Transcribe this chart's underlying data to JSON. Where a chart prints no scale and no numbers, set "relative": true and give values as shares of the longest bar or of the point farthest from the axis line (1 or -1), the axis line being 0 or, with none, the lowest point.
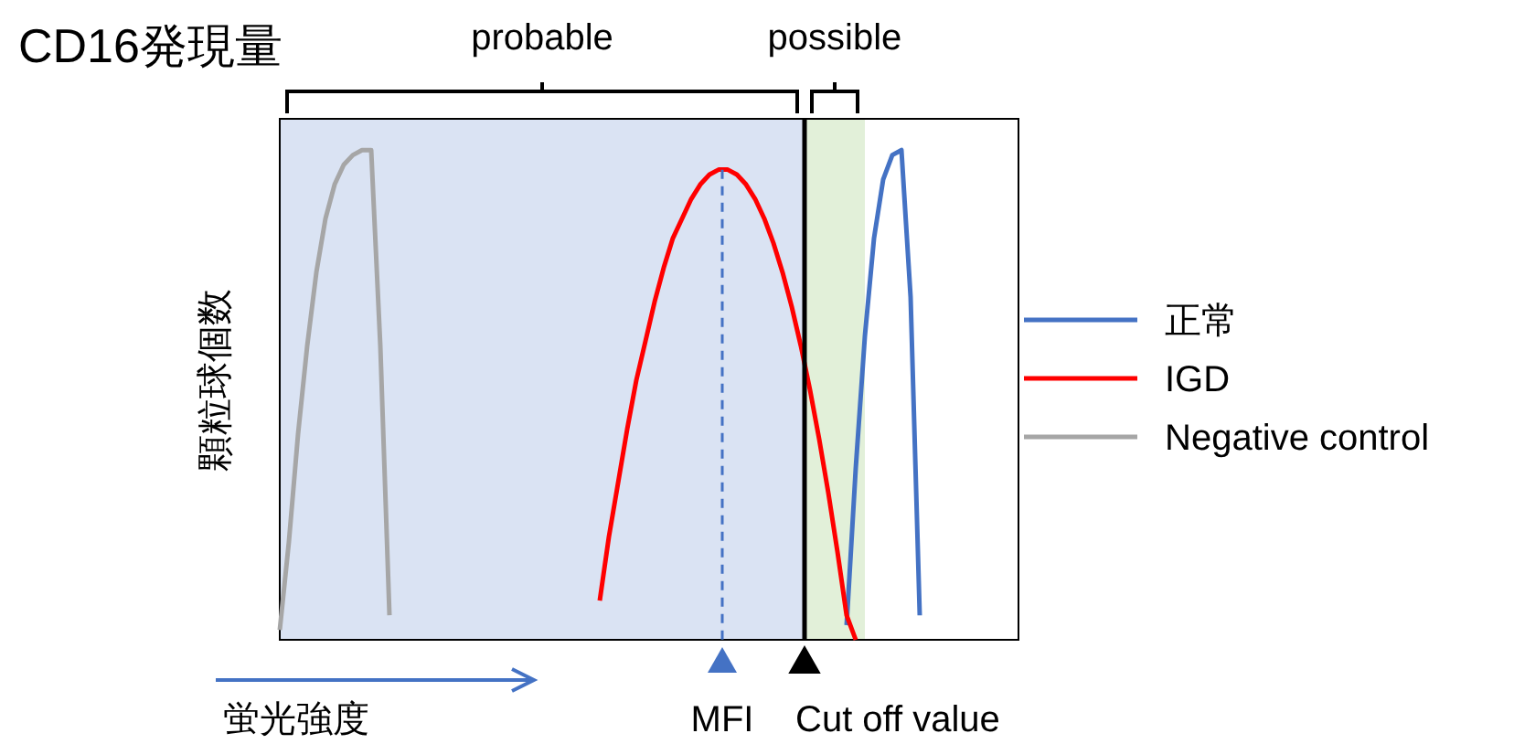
{
  "chart_data": {
    "type": "line",
    "relative": true,
    "title": "CD16発現量",
    "xlabel": "蛍光強度",
    "ylabel": "顆粒球個数",
    "legend": "right",
    "annotations": [
      "probable",
      "possible",
      "MFI",
      "Cut off value"
    ],
    "categories": [
      null,
      null,
      null,
      null,
      null,
      null,
      null,
      null,
      null,
      null,
      null,
      null,
      null,
      null,
      null,
      null,
      null,
      null,
      null,
      null,
      null,
      null,
      null,
      null,
      null,
      null,
      null,
      null,
      null,
      null,
      null,
      null,
      null,
      null,
      null,
      null,
      null,
      null,
      null,
      null,
      null,
      null,
      null,
      null,
      null,
      null,
      null,
      null,
      null,
      null,
      null,
      null,
      null,
      null,
      null,
      null,
      null,
      null,
      null,
      null,
      null,
      null,
      null,
      null,
      null,
      null,
      null,
      null,
      null,
      null,
      null,
      null,
      null,
      null,
      null,
      null,
      null,
      null,
      null,
      null,
      null
    ],
    "series": [
      {
        "name": "正常",
        "color": "#4472c4",
        "values": [
          null,
          null,
          null,
          null,
          null,
          null,
          null,
          null,
          null,
          null,
          null,
          null,
          null,
          null,
          null,
          null,
          null,
          null,
          null,
          null,
          null,
          null,
          null,
          null,
          null,
          null,
          null,
          null,
          null,
          null,
          null,
          null,
          null,
          null,
          null,
          null,
          null,
          null,
          null,
          null,
          null,
          null,
          null,
          null,
          null,
          null,
          null,
          null,
          null,
          null,
          null,
          null,
          null,
          null,
          null,
          null,
          null,
          null,
          null,
          null,
          null,
          null,
          0.03,
          0.35,
          0.62,
          0.82,
          0.94,
          0.99,
          1.0,
          0.7,
          0.05,
          null,
          null,
          null,
          null,
          null,
          null,
          null,
          null,
          null,
          null
        ]
      },
      {
        "name": "IGD",
        "color": "#ff0000",
        "values": [
          null,
          null,
          null,
          null,
          null,
          null,
          null,
          null,
          null,
          null,
          null,
          null,
          null,
          null,
          null,
          null,
          null,
          null,
          null,
          null,
          null,
          null,
          null,
          null,
          null,
          null,
          null,
          null,
          null,
          null,
          null,
          null,
          null,
          null,
          null,
          0.08,
          0.21,
          0.32,
          0.43,
          0.53,
          0.61,
          0.69,
          0.76,
          0.82,
          0.86,
          0.9,
          0.93,
          0.95,
          0.96,
          0.96,
          0.95,
          0.93,
          0.9,
          0.86,
          0.81,
          0.75,
          0.68,
          0.6,
          0.51,
          0.41,
          0.3,
          0.18,
          0.05,
          0.0,
          null,
          null,
          null,
          null,
          null,
          null,
          null,
          null,
          null,
          null,
          null,
          null,
          null,
          null,
          null,
          null,
          null
        ]
      },
      {
        "name": "Negative control",
        "color": "#a6a6a6",
        "values": [
          0.02,
          0.2,
          0.42,
          0.6,
          0.75,
          0.86,
          0.93,
          0.97,
          0.99,
          1.0,
          1.0,
          0.6,
          0.05,
          null,
          null,
          null,
          null,
          null,
          null,
          null,
          null,
          null,
          null,
          null,
          null,
          null,
          null,
          null,
          null,
          null,
          null,
          null,
          null,
          null,
          null,
          null,
          null,
          null,
          null,
          null,
          null,
          null,
          null,
          null,
          null,
          null,
          null,
          null,
          null,
          null,
          null,
          null,
          null,
          null,
          null,
          null,
          null,
          null,
          null,
          null,
          null,
          null,
          null,
          null,
          null,
          null,
          null,
          null,
          null,
          null,
          null,
          null,
          null,
          null,
          null,
          null,
          null,
          null,
          null,
          null,
          null
        ]
      }
    ]
  }
}
